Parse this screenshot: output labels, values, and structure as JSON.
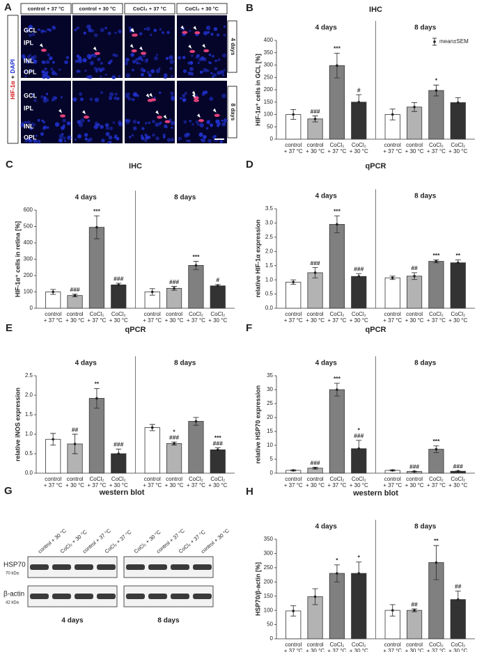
{
  "panel_a": {
    "panel": "A",
    "columns": [
      "control + 37 °C",
      "control + 30 °C",
      "CoCl₂ + 37 °C",
      "CoCl₂ + 30 °C"
    ],
    "rows": [
      "4 days",
      "8 days"
    ],
    "stain": [
      "HIF-1α",
      "+",
      "DAPI"
    ],
    "layers": [
      "GCL",
      "IPL",
      "INL",
      "OPL"
    ]
  },
  "panel_g": {
    "panel": "G",
    "title": "western blot",
    "groups": [
      {
        "name": "4 days",
        "lanes": [
          "control + 30 °C",
          "CoCl₂ + 30 °C",
          "control + 37 °C",
          "CoCl₂ + 37 °C"
        ]
      },
      {
        "name": "8 days",
        "lanes": [
          "CoCl₂ + 30 °C",
          "control + 37 °C",
          "CoCl₂ + 37 °C",
          "control + 30 °C"
        ]
      }
    ],
    "rows": [
      {
        "name": "HSP70",
        "size": "70 kDa"
      },
      {
        "name": "β-actin",
        "size": "42 kDa"
      }
    ]
  },
  "chart_data": [
    {
      "type": "bar",
      "panel": "B",
      "title": "IHC",
      "y_label": "HIF-1α⁺ cells in GCL [%]",
      "legend_label": "mean±SEM",
      "categories": [
        [
          "control",
          "+ 37 °C"
        ],
        [
          "control",
          "+ 30 °C"
        ],
        [
          "CoCl₂",
          "+ 37 °C"
        ],
        [
          "CoCl₂",
          "+ 30 °C"
        ]
      ],
      "colors": [
        "#ffffff",
        "#b3b3b3",
        "#808080",
        "#333333"
      ],
      "groups": [
        {
          "name": "4 days",
          "values": [
            100,
            82,
            298,
            150
          ],
          "errors": [
            20,
            12,
            50,
            30
          ],
          "significance": [
            [],
            [
              "###"
            ],
            [
              "***"
            ],
            [
              "#"
            ]
          ]
        },
        {
          "name": "8 days",
          "values": [
            100,
            130,
            197,
            148
          ],
          "errors": [
            22,
            18,
            22,
            20
          ],
          "significance": [
            [],
            [],
            [
              "*"
            ],
            []
          ]
        }
      ],
      "ylim": [
        0,
        400
      ],
      "yticks": [
        0,
        50,
        100,
        150,
        200,
        250,
        300,
        350,
        400
      ]
    },
    {
      "type": "bar",
      "panel": "C",
      "title": "IHC",
      "y_label": "HIF-1α⁺ cells in retina [%]",
      "categories": [
        [
          "control",
          "+ 37 °C"
        ],
        [
          "control",
          "+ 30 °C"
        ],
        [
          "CoCl₂",
          "+ 37 °C"
        ],
        [
          "CoCl₂",
          "+ 30 °C"
        ]
      ],
      "colors": [
        "#ffffff",
        "#b3b3b3",
        "#808080",
        "#333333"
      ],
      "groups": [
        {
          "name": "4 days",
          "values": [
            100,
            78,
            495,
            143
          ],
          "errors": [
            15,
            8,
            70,
            10
          ],
          "significance": [
            [],
            [
              "###"
            ],
            [
              "***"
            ],
            [
              "###"
            ]
          ]
        },
        {
          "name": "8 days",
          "values": [
            100,
            122,
            262,
            137
          ],
          "errors": [
            20,
            12,
            25,
            8
          ],
          "significance": [
            [],
            [
              "###"
            ],
            [
              "***"
            ],
            [
              "#"
            ]
          ]
        }
      ],
      "ylim": [
        0,
        600
      ],
      "yticks": [
        0,
        100,
        200,
        300,
        400,
        500,
        600
      ]
    },
    {
      "type": "bar",
      "panel": "D",
      "title": "qPCR",
      "y_label": "relative HIF-1α expression",
      "categories": [
        [
          "control",
          "+ 37 °C"
        ],
        [
          "control",
          "+ 30 °C"
        ],
        [
          "CoCl₂",
          "+ 37 °C"
        ],
        [
          "CoCl₂",
          "+ 30 °C"
        ]
      ],
      "colors": [
        "#ffffff",
        "#b3b3b3",
        "#808080",
        "#333333"
      ],
      "groups": [
        {
          "name": "4 days",
          "values": [
            0.92,
            1.25,
            2.95,
            1.12
          ],
          "errors": [
            0.08,
            0.18,
            0.3,
            0.1
          ],
          "significance": [
            [],
            [
              "###"
            ],
            [
              "***"
            ],
            [
              "###"
            ]
          ]
        },
        {
          "name": "8 days",
          "values": [
            1.07,
            1.13,
            1.65,
            1.6
          ],
          "errors": [
            0.06,
            0.12,
            0.05,
            0.1
          ],
          "significance": [
            [],
            [
              "##"
            ],
            [
              "***"
            ],
            [
              "**"
            ]
          ]
        }
      ],
      "ylim": [
        0,
        3.5
      ],
      "yticks": [
        {
          "value": 0,
          "label": "0.0"
        },
        0.5,
        {
          "value": 1,
          "label": "1.0"
        },
        1.5,
        {
          "value": 2,
          "label": "2.0"
        },
        2.5,
        {
          "value": 3,
          "label": "3.0"
        },
        3.5
      ]
    },
    {
      "type": "bar",
      "panel": "E",
      "title": "qPCR",
      "y_label": "relative iNOS expression",
      "categories": [
        [
          "control",
          "+ 37 °C"
        ],
        [
          "control",
          "+ 30 °C"
        ],
        [
          "CoCl₂",
          "+ 37 °C"
        ],
        [
          "CoCl₂",
          "+ 30 °C"
        ]
      ],
      "colors": [
        "#ffffff",
        "#b3b3b3",
        "#808080",
        "#333333"
      ],
      "groups": [
        {
          "name": "4 days",
          "values": [
            0.87,
            0.75,
            1.92,
            0.5
          ],
          "errors": [
            0.15,
            0.25,
            0.25,
            0.12
          ],
          "significance": [
            [],
            [
              "##"
            ],
            [
              "**"
            ],
            [
              "###"
            ]
          ]
        },
        {
          "name": "8 days",
          "values": [
            1.17,
            0.76,
            1.33,
            0.6
          ],
          "errors": [
            0.08,
            0.04,
            0.1,
            0.05
          ],
          "significance": [
            [],
            [
              "*",
              "###"
            ],
            [],
            [
              "***",
              "###"
            ]
          ]
        }
      ],
      "ylim": [
        0,
        2.5
      ],
      "yticks": [
        {
          "value": 0,
          "label": "0.0"
        },
        0.5,
        {
          "value": 1,
          "label": "1.0"
        },
        1.5,
        {
          "value": 2,
          "label": "2.0"
        },
        2.5
      ]
    },
    {
      "type": "bar",
      "panel": "F",
      "title": "qPCR",
      "y_label": "relative HSP70 expression",
      "categories": [
        [
          "control",
          "+ 37 °C"
        ],
        [
          "control",
          "+ 30 °C"
        ],
        [
          "CoCl₂",
          "+ 37 °C"
        ],
        [
          "CoCl₂",
          "+ 30 °C"
        ]
      ],
      "colors": [
        "#ffffff",
        "#b3b3b3",
        "#808080",
        "#333333"
      ],
      "groups": [
        {
          "name": "4 days",
          "values": [
            1,
            1.8,
            30,
            8.8
          ],
          "errors": [
            0.2,
            0.3,
            2.3,
            3
          ],
          "significance": [
            [],
            [
              "###"
            ],
            [
              "***"
            ],
            [
              "*",
              "###"
            ]
          ]
        },
        {
          "name": "8 days",
          "values": [
            1,
            0.6,
            8.6,
            0.7
          ],
          "errors": [
            0.2,
            0.1,
            1.2,
            0.1
          ],
          "significance": [
            [],
            [
              "###"
            ],
            [
              "***"
            ],
            [
              "###"
            ]
          ]
        }
      ],
      "ylim": [
        0,
        35
      ],
      "yticks": [
        0,
        5,
        10,
        15,
        20,
        25,
        30,
        35
      ]
    },
    {
      "type": "bar",
      "panel": "H",
      "title": "western blot",
      "y_label": "HSP70/β-actin [%]",
      "categories": [
        [
          "control",
          "+ 37 °C"
        ],
        [
          "control",
          "+ 30 °C"
        ],
        [
          "CoCl₂",
          "+ 37 °C"
        ],
        [
          "CoCl₂",
          "+ 30 °C"
        ]
      ],
      "colors": [
        "#ffffff",
        "#b3b3b3",
        "#808080",
        "#333333"
      ],
      "groups": [
        {
          "name": "4 days",
          "values": [
            98,
            148,
            230,
            230
          ],
          "errors": [
            18,
            28,
            30,
            40
          ],
          "significance": [
            [],
            [],
            [
              "*"
            ],
            [
              "*"
            ]
          ]
        },
        {
          "name": "8 days",
          "values": [
            100,
            100,
            268,
            138
          ],
          "errors": [
            20,
            5,
            60,
            30
          ],
          "significance": [
            [],
            [
              "##"
            ],
            [
              "**"
            ],
            [
              "##"
            ]
          ]
        }
      ],
      "ylim": [
        0,
        350
      ],
      "yticks": [
        0,
        50,
        100,
        150,
        200,
        250,
        300,
        350
      ]
    }
  ]
}
